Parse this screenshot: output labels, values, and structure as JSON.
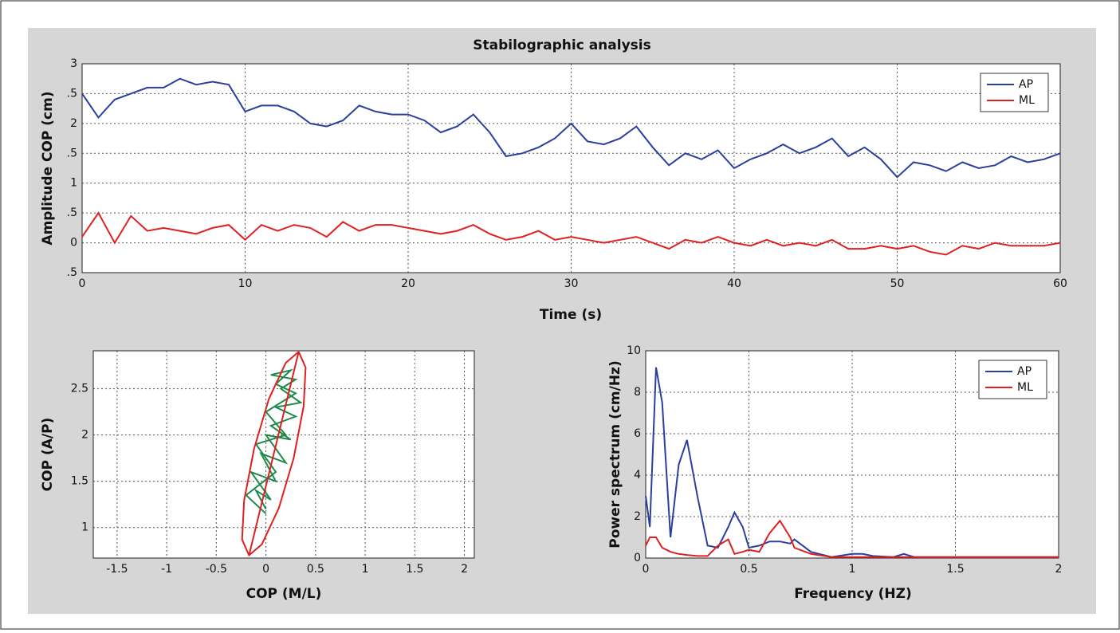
{
  "chart_data": [
    {
      "type": "line",
      "title": "Stabilographic analysis",
      "xlabel": "Time (s)",
      "ylabel": "Amplitude COP (cm)",
      "x": [
        0,
        1,
        2,
        3,
        4,
        5,
        6,
        7,
        8,
        9,
        10,
        11,
        12,
        13,
        14,
        15,
        16,
        17,
        18,
        19,
        20,
        21,
        22,
        23,
        24,
        25,
        26,
        27,
        28,
        29,
        30,
        31,
        32,
        33,
        34,
        35,
        36,
        37,
        38,
        39,
        40,
        41,
        42,
        43,
        44,
        45,
        46,
        47,
        48,
        49,
        50,
        51,
        52,
        53,
        54,
        55,
        56,
        57,
        58,
        59,
        60
      ],
      "series": [
        {
          "name": "AP",
          "color": "#2a3f9e",
          "values": [
            2.5,
            2.1,
            2.4,
            2.5,
            2.6,
            2.6,
            2.75,
            2.65,
            2.7,
            2.65,
            2.2,
            2.3,
            2.3,
            2.2,
            2.0,
            1.95,
            2.05,
            2.3,
            2.2,
            2.15,
            2.15,
            2.05,
            1.85,
            1.95,
            2.15,
            1.85,
            1.45,
            1.5,
            1.6,
            1.75,
            2.0,
            1.7,
            1.65,
            1.75,
            1.95,
            1.6,
            1.3,
            1.5,
            1.4,
            1.55,
            1.25,
            1.4,
            1.5,
            1.65,
            1.5,
            1.6,
            1.75,
            1.45,
            1.6,
            1.4,
            1.1,
            1.35,
            1.3,
            1.2,
            1.35,
            1.25,
            1.3,
            1.45,
            1.35,
            1.4,
            1.5
          ]
        },
        {
          "name": "ML",
          "color": "#e02020",
          "values": [
            0.1,
            0.5,
            0.0,
            0.45,
            0.2,
            0.25,
            0.2,
            0.15,
            0.25,
            0.3,
            0.05,
            0.3,
            0.2,
            0.3,
            0.25,
            0.1,
            0.35,
            0.2,
            0.3,
            0.3,
            0.25,
            0.2,
            0.15,
            0.2,
            0.3,
            0.15,
            0.05,
            0.1,
            0.2,
            0.05,
            0.1,
            0.05,
            0.0,
            0.05,
            0.1,
            0.0,
            -0.1,
            0.05,
            0.0,
            0.1,
            0.0,
            -0.05,
            0.05,
            -0.05,
            0.0,
            -0.05,
            0.05,
            -0.1,
            -0.1,
            -0.05,
            -0.1,
            -0.05,
            -0.15,
            -0.2,
            -0.05,
            -0.1,
            0.0,
            -0.05,
            -0.05,
            -0.05,
            0.0
          ]
        }
      ],
      "xlim": [
        0,
        60
      ],
      "xticks": [
        0,
        10,
        20,
        30,
        40,
        50,
        60
      ],
      "ylim": [
        -0.5,
        3
      ],
      "yticks": [
        {
          "value": -0.5,
          "label": ".5"
        },
        0,
        {
          "value": 0.5,
          "label": ".5"
        },
        1,
        {
          "value": 1.5,
          "label": ".5"
        },
        2,
        {
          "value": 2.5,
          "label": ".5"
        },
        3
      ],
      "grid": true,
      "legend": "upper right"
    },
    {
      "type": "line",
      "xlabel": "COP (M/L)",
      "ylabel": "COP (A/P)",
      "series": [
        {
          "color": "#1e8a4a",
          "x": [
            0.0,
            -0.1,
            0.05,
            -0.15,
            0.1,
            -0.05,
            0.2,
            0.0,
            0.25,
            0.05,
            0.3,
            0.1,
            0.35,
            0.15,
            0.3,
            0.05,
            0.25,
            0.1,
            0.3,
            0.0,
            0.2,
            -0.1,
            0.1,
            -0.2,
            0.0
          ],
          "values": [
            1.2,
            1.4,
            1.3,
            1.6,
            1.5,
            1.8,
            1.7,
            2.0,
            1.95,
            2.1,
            2.2,
            2.3,
            2.35,
            2.5,
            2.6,
            2.65,
            2.7,
            2.55,
            2.45,
            2.25,
            2.0,
            1.9,
            1.6,
            1.35,
            1.15
          ]
        },
        {
          "color": "#e02020",
          "x": [
            0.33,
            0.4,
            0.38,
            0.28,
            0.13,
            -0.04,
            -0.17,
            -0.24,
            -0.22,
            -0.12,
            0.03,
            0.2,
            0.33
          ],
          "values": [
            2.9,
            2.73,
            2.31,
            1.75,
            1.21,
            0.82,
            0.7,
            0.87,
            1.29,
            1.85,
            2.39,
            2.78,
            2.9
          ]
        },
        {
          "color": "#e02020",
          "x": [
            -0.17,
            0.33
          ],
          "values": [
            0.7,
            2.9
          ]
        }
      ],
      "xlim": [
        -1.74,
        2.1
      ],
      "xticks": [
        -1.5,
        -1,
        -0.5,
        0,
        0.5,
        1,
        1.5,
        2
      ],
      "ylim": [
        0.67,
        2.91
      ],
      "yticks": [
        1,
        1.5,
        2,
        2.5
      ],
      "grid": true
    },
    {
      "type": "line",
      "xlabel": "Frequency (HZ)",
      "ylabel": "Power spectrum  (cm/Hz)",
      "x": [
        0,
        0.02,
        0.05,
        0.08,
        0.12,
        0.16,
        0.2,
        0.25,
        0.3,
        0.35,
        0.4,
        0.43,
        0.47,
        0.5,
        0.55,
        0.6,
        0.65,
        0.7,
        0.72,
        0.8,
        0.9,
        1.0,
        1.05,
        1.1,
        1.2,
        1.25,
        1.3,
        1.4,
        2.0
      ],
      "series": [
        {
          "name": "AP",
          "color": "#2a3f9e",
          "values": [
            3,
            1.5,
            9.2,
            7.5,
            1.0,
            4.5,
            5.7,
            3,
            0.6,
            0.5,
            1.5,
            2.2,
            1.5,
            0.5,
            0.6,
            0.8,
            0.8,
            0.7,
            0.9,
            0.3,
            0.05,
            0.2,
            0.2,
            0.1,
            0.05,
            0.2,
            0.05,
            0.05,
            0.05
          ]
        },
        {
          "name": "ML",
          "color": "#e02020",
          "values": [
            0.6,
            1.0,
            1.0,
            0.5,
            0.3,
            0.2,
            0.15,
            0.1,
            0.1,
            0.6,
            0.9,
            0.2,
            0.3,
            0.4,
            0.3,
            1.2,
            1.8,
            1.0,
            0.5,
            0.2,
            0.05,
            0.05,
            0.05,
            0.05,
            0.05,
            0.05,
            0.05,
            0.05,
            0.05
          ]
        }
      ],
      "xlim": [
        0,
        2
      ],
      "xticks": [
        0,
        0.5,
        1,
        1.5,
        2
      ],
      "ylim": [
        0,
        10
      ],
      "yticks": [
        0,
        2,
        4,
        6,
        8,
        10
      ],
      "grid": true,
      "legend": "upper right"
    }
  ]
}
